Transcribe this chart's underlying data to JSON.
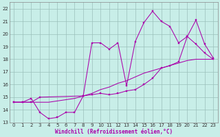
{
  "xlabel": "Windchill (Refroidissement éolien,°C)",
  "bg_color": "#c8eee8",
  "grid_color": "#9bbfbb",
  "line_color": "#aa00aa",
  "line1_x": [
    0,
    1,
    2,
    3,
    4,
    5,
    6,
    7,
    8,
    9,
    10,
    11,
    12,
    13,
    14,
    15,
    16,
    17,
    18,
    19,
    20,
    21,
    22,
    23
  ],
  "line1_y": [
    14.6,
    14.6,
    14.6,
    14.6,
    14.6,
    14.7,
    14.8,
    14.9,
    15.1,
    15.3,
    15.6,
    15.8,
    16.1,
    16.3,
    16.6,
    16.9,
    17.1,
    17.3,
    17.5,
    17.7,
    17.9,
    18.0,
    18.0,
    18.0
  ],
  "line2_x": [
    0,
    1,
    2,
    3,
    4,
    5,
    6,
    7,
    8,
    9,
    10,
    11,
    12,
    13,
    14,
    15,
    16,
    17,
    18,
    19,
    20,
    21,
    22,
    23
  ],
  "line2_y": [
    14.6,
    14.6,
    14.9,
    13.8,
    13.3,
    13.4,
    13.8,
    13.8,
    15.1,
    15.2,
    15.3,
    15.2,
    15.3,
    15.5,
    15.6,
    16.0,
    16.5,
    17.3,
    17.5,
    17.8,
    19.8,
    19.2,
    18.5,
    18.0
  ],
  "line3_x": [
    0,
    1,
    2,
    3,
    8,
    9,
    10,
    11,
    12,
    13,
    14,
    15,
    16,
    17,
    18,
    19,
    20,
    21,
    22,
    23
  ],
  "line3_y": [
    14.6,
    14.6,
    14.6,
    15.0,
    15.1,
    19.3,
    19.3,
    18.8,
    19.3,
    15.9,
    19.4,
    20.9,
    21.8,
    21.0,
    20.6,
    19.3,
    19.8,
    21.1,
    19.2,
    18.1
  ],
  "xlim": [
    -0.5,
    23.5
  ],
  "ylim": [
    13.0,
    22.5
  ],
  "yticks": [
    13,
    14,
    15,
    16,
    17,
    18,
    19,
    20,
    21,
    22
  ],
  "xticks": [
    0,
    1,
    2,
    3,
    4,
    5,
    6,
    7,
    8,
    9,
    10,
    11,
    12,
    13,
    14,
    15,
    16,
    17,
    18,
    19,
    20,
    21,
    22,
    23
  ]
}
